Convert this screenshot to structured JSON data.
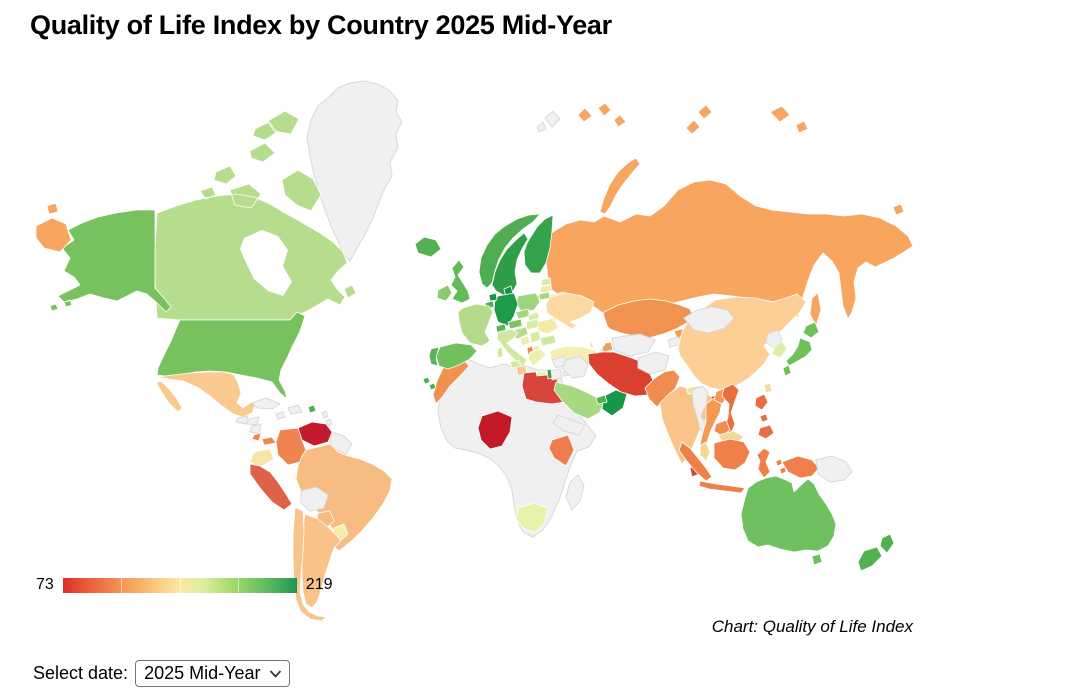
{
  "page": {
    "title": "Quality of Life Index by Country 2025 Mid-Year"
  },
  "legend": {
    "min_label": "73",
    "max_label": "219",
    "gradient_stops": [
      "#dc3027 0%",
      "#e85a38 10%",
      "#f59c58 27%",
      "#fdc97f 40%",
      "#fbe8a2 50%",
      "#dcee9f 60%",
      "#a6d96a 72%",
      "#66bd63 86%",
      "#1a9850 100%"
    ],
    "tick_positions_pct": [
      25,
      50,
      75
    ]
  },
  "attribution": "Chart: Quality of Life Index",
  "controls": {
    "label": "Select date:",
    "selected_option": "2025 Mid-Year",
    "options": [
      "2025 Mid-Year"
    ]
  },
  "chart_data": {
    "type": "heatmap",
    "subtype": "choropleth-world-map",
    "title": "Quality of Life Index by Country 2025 Mid-Year",
    "scale": {
      "min": 73,
      "max": 219,
      "palette": "red-yellow-green"
    },
    "no_data_color": "#f0f0f0",
    "no_data_border": "#d9d9d9",
    "country_border": "#ffffff",
    "note": "Only the scale endpoints 73 and 219 are printed in the image; per-country values are estimated from fill colors.",
    "countries": [
      {
        "id": "greenland",
        "name": "Greenland",
        "no_data": true,
        "color": "#f0f0f0"
      },
      {
        "id": "svalbard",
        "name": "Svalbard",
        "no_data": true,
        "color": "#f0f0f0"
      },
      {
        "id": "canada",
        "name": "Canada",
        "color": "#b6dc8d",
        "value_estimate": 160
      },
      {
        "id": "united-states",
        "name": "United States",
        "color": "#77c25e",
        "value_estimate": 172
      },
      {
        "id": "mexico",
        "name": "Mexico",
        "color": "#f9c98e",
        "value_estimate": 117
      },
      {
        "id": "guatemala",
        "name": "Guatemala",
        "no_data": true,
        "color": "#f0f0f0"
      },
      {
        "id": "honduras",
        "name": "Honduras",
        "no_data": true,
        "color": "#f0f0f0"
      },
      {
        "id": "nicaragua",
        "name": "Nicaragua",
        "no_data": true,
        "color": "#f0f0f0"
      },
      {
        "id": "costa-rica",
        "name": "Costa Rica",
        "color": "#f0854e",
        "value_estimate": 97
      },
      {
        "id": "panama",
        "name": "Panama",
        "color": "#f0854e",
        "value_estimate": 97
      },
      {
        "id": "cuba",
        "name": "Cuba",
        "no_data": true,
        "color": "#f0f0f0"
      },
      {
        "id": "hispaniola",
        "name": "Hispaniola",
        "no_data": true,
        "color": "#f0f0f0"
      },
      {
        "id": "jamaica",
        "name": "Jamaica",
        "no_data": true,
        "color": "#f0f0f0"
      },
      {
        "id": "puerto-rico",
        "name": "Puerto Rico",
        "color": "#4fae52",
        "value_estimate": 175
      },
      {
        "id": "lesser-antilles",
        "name": "Lesser Antilles",
        "no_data": true,
        "color": "#f0f0f0"
      },
      {
        "id": "venezuela",
        "name": "Venezuela",
        "color": "#c31b2d",
        "value_estimate": 76
      },
      {
        "id": "guyanas",
        "name": "Guyana / Suriname",
        "no_data": true,
        "color": "#f0f0f0"
      },
      {
        "id": "colombia",
        "name": "Colombia",
        "color": "#ef8450",
        "value_estimate": 97
      },
      {
        "id": "ecuador",
        "name": "Ecuador",
        "color": "#f6e6a5",
        "value_estimate": 135
      },
      {
        "id": "brazil",
        "name": "Brazil",
        "color": "#f8bc82",
        "value_estimate": 112
      },
      {
        "id": "peru",
        "name": "Peru",
        "color": "#e0614a",
        "value_estimate": 88
      },
      {
        "id": "bolivia",
        "name": "Bolivia",
        "no_data": true,
        "color": "#f0f0f0"
      },
      {
        "id": "paraguay",
        "name": "Paraguay",
        "color": "#f8bc82",
        "value_estimate": 112
      },
      {
        "id": "uruguay",
        "name": "Uruguay",
        "color": "#f5eda9",
        "value_estimate": 138
      },
      {
        "id": "argentina",
        "name": "Argentina",
        "color": "#f9c289",
        "value_estimate": 116
      },
      {
        "id": "chile",
        "name": "Chile",
        "color": "#f9c48c",
        "value_estimate": 118
      },
      {
        "id": "africa-nodata",
        "name": "Africa (various, no data)",
        "no_data": true,
        "color": "#f0f0f0"
      },
      {
        "id": "madagascar",
        "name": "Madagascar",
        "no_data": true,
        "color": "#f0f0f0"
      },
      {
        "id": "morocco",
        "name": "Morocco",
        "color": "#f0914f",
        "value_estimate": 100
      },
      {
        "id": "tunisia",
        "name": "Tunisia",
        "color": "#f7c98e",
        "value_estimate": 118
      },
      {
        "id": "egypt",
        "name": "Egypt",
        "color": "#d8453c",
        "value_estimate": 84
      },
      {
        "id": "nigeria",
        "name": "Nigeria",
        "color": "#c21a28",
        "value_estimate": 74
      },
      {
        "id": "kenya",
        "name": "Kenya",
        "color": "#ed7c4e",
        "value_estimate": 90
      },
      {
        "id": "south-africa",
        "name": "South Africa",
        "color": "#e8f2ab",
        "value_estimate": 146
      },
      {
        "id": "atlantic-islands",
        "name": "Atlantic islands",
        "color": "#4fae52",
        "value_estimate": 170
      },
      {
        "id": "russia",
        "name": "Russia",
        "color": "#f8a55f",
        "value_estimate": 108
      },
      {
        "id": "iceland",
        "name": "Iceland",
        "color": "#55b054",
        "value_estimate": 176
      },
      {
        "id": "norway",
        "name": "Norway",
        "color": "#4fae52",
        "value_estimate": 180
      },
      {
        "id": "sweden",
        "name": "Sweden",
        "color": "#2f9e47",
        "value_estimate": 192
      },
      {
        "id": "finland",
        "name": "Finland",
        "color": "#35a34a",
        "value_estimate": 190
      },
      {
        "id": "denmark",
        "name": "Denmark",
        "color": "#129249",
        "value_estimate": 210
      },
      {
        "id": "estonia",
        "name": "Estonia",
        "color": "#d8eda6",
        "value_estimate": 150
      },
      {
        "id": "latvia",
        "name": "Latvia",
        "color": "#f0e8a8",
        "value_estimate": 140
      },
      {
        "id": "lithuania",
        "name": "Lithuania",
        "color": "#aad580",
        "value_estimate": 155
      },
      {
        "id": "belarus",
        "name": "Belarus",
        "color": "#f3e5a5",
        "value_estimate": 132
      },
      {
        "id": "poland",
        "name": "Poland",
        "color": "#9ed47d",
        "value_estimate": 160
      },
      {
        "id": "germany",
        "name": "Germany",
        "color": "#1d9b49",
        "value_estimate": 200
      },
      {
        "id": "netherlands",
        "name": "Netherlands",
        "color": "#19964a",
        "value_estimate": 205
      },
      {
        "id": "belgium",
        "name": "Belgium",
        "color": "#4fae52",
        "value_estimate": 180
      },
      {
        "id": "united-kingdom",
        "name": "United Kingdom",
        "color": "#63bb57",
        "value_estimate": 168
      },
      {
        "id": "ireland",
        "name": "Ireland",
        "color": "#8bcb6e",
        "value_estimate": 165
      },
      {
        "id": "france",
        "name": "France",
        "color": "#b4da8c",
        "value_estimate": 158
      },
      {
        "id": "switzerland",
        "name": "Switzerland",
        "color": "#58b456",
        "value_estimate": 182
      },
      {
        "id": "austria",
        "name": "Austria",
        "color": "#7cc465",
        "value_estimate": 172
      },
      {
        "id": "czechia",
        "name": "Czechia",
        "color": "#a5d67e",
        "value_estimate": 162
      },
      {
        "id": "slovakia",
        "name": "Slovakia",
        "color": "#d8eda6",
        "value_estimate": 150
      },
      {
        "id": "hungary",
        "name": "Hungary",
        "color": "#d9eda2",
        "value_estimate": 140
      },
      {
        "id": "romania",
        "name": "Romania",
        "color": "#f5e9a8",
        "value_estimate": 138
      },
      {
        "id": "moldova",
        "name": "Moldova",
        "color": "#f5e9a8",
        "value_estimate": 138
      },
      {
        "id": "ukraine",
        "name": "Ukraine",
        "color": "#fbd9a0",
        "value_estimate": 122
      },
      {
        "id": "croatia",
        "name": "Croatia",
        "color": "#b8dc8e",
        "value_estimate": 158
      },
      {
        "id": "bosnia",
        "name": "Bosnia and Herzegovina",
        "color": "#e8f0b0",
        "value_estimate": 142
      },
      {
        "id": "serbia",
        "name": "Serbia",
        "color": "#d9eda2",
        "value_estimate": 140
      },
      {
        "id": "albania",
        "name": "Albania",
        "color": "#ef8450",
        "value_estimate": 95
      },
      {
        "id": "north-macedonia",
        "name": "North Macedonia",
        "color": "#e8f0b0",
        "value_estimate": 142
      },
      {
        "id": "bulgaria",
        "name": "Bulgaria",
        "color": "#cde8a0",
        "value_estimate": 144
      },
      {
        "id": "greece",
        "name": "Greece",
        "color": "#e9f0b0",
        "value_estimate": 142
      },
      {
        "id": "italy",
        "name": "Italy",
        "color": "#cfe9a2",
        "value_estimate": 148
      },
      {
        "id": "spain",
        "name": "Spain",
        "color": "#70c05e",
        "value_estimate": 174
      },
      {
        "id": "portugal",
        "name": "Portugal",
        "color": "#58b454",
        "value_estimate": 182
      },
      {
        "id": "turkey",
        "name": "Turkey",
        "color": "#f6eeb2",
        "value_estimate": 134
      },
      {
        "id": "cyprus",
        "name": "Cyprus",
        "no_data": true,
        "color": "#f0f0f0"
      },
      {
        "id": "georgia",
        "name": "Georgia",
        "color": "#f6d7a0",
        "value_estimate": 125
      },
      {
        "id": "azerbaijan",
        "name": "Azerbaijan",
        "color": "#f0a05c",
        "value_estimate": 107
      },
      {
        "id": "armenia",
        "name": "Armenia",
        "no_data": true,
        "color": "#f0f0f0"
      },
      {
        "id": "syria",
        "name": "Syria",
        "no_data": true,
        "color": "#f0f0f0"
      },
      {
        "id": "iraq",
        "name": "Iraq",
        "no_data": true,
        "color": "#f0f0f0"
      },
      {
        "id": "jordan",
        "name": "Jordan",
        "no_data": true,
        "color": "#f0f0f0"
      },
      {
        "id": "israel",
        "name": "Israel",
        "color": "#35a34a",
        "value_estimate": 178
      },
      {
        "id": "saudi-arabia",
        "name": "Saudi Arabia",
        "color": "#a9d883",
        "value_estimate": 155
      },
      {
        "id": "yemen",
        "name": "Yemen",
        "no_data": true,
        "color": "#f0f0f0"
      },
      {
        "id": "oman",
        "name": "Oman",
        "color": "#189648",
        "value_estimate": 212
      },
      {
        "id": "uae",
        "name": "United Arab Emirates",
        "color": "#4caf50",
        "value_estimate": 185
      },
      {
        "id": "iran",
        "name": "Iran",
        "color": "#d9402f",
        "value_estimate": 86
      },
      {
        "id": "afghanistan",
        "name": "Afghanistan",
        "no_data": true,
        "color": "#f0f0f0"
      },
      {
        "id": "kazakhstan",
        "name": "Kazakhstan",
        "color": "#f19350",
        "value_estimate": 103
      },
      {
        "id": "central-asia",
        "name": "Uzbekistan / Turkmenistan",
        "no_data": true,
        "color": "#f0f0f0"
      },
      {
        "id": "kyrgyzstan",
        "name": "Kyrgyzstan",
        "color": "#f4994f",
        "value_estimate": 102
      },
      {
        "id": "tajikistan",
        "name": "Tajikistan",
        "no_data": true,
        "color": "#f0f0f0"
      },
      {
        "id": "pakistan",
        "name": "Pakistan",
        "color": "#f08c50",
        "value_estimate": 98
      },
      {
        "id": "india",
        "name": "India",
        "color": "#fac389",
        "value_estimate": 118
      },
      {
        "id": "nepal",
        "name": "Nepal",
        "color": "#f5e3a0",
        "value_estimate": 130
      },
      {
        "id": "bangladesh",
        "name": "Bangladesh",
        "color": "#cc2d35",
        "value_estimate": 78
      },
      {
        "id": "sri-lanka",
        "name": "Sri Lanka",
        "color": "#d64040",
        "value_estimate": 82
      },
      {
        "id": "china",
        "name": "China",
        "color": "#fbcf96",
        "value_estimate": 122
      },
      {
        "id": "mongolia",
        "name": "Mongolia",
        "no_data": true,
        "color": "#f0f0f0"
      },
      {
        "id": "north-korea",
        "name": "North Korea",
        "no_data": true,
        "color": "#f0f0f0"
      },
      {
        "id": "south-korea",
        "name": "South Korea",
        "color": "#dcefa8",
        "value_estimate": 145
      },
      {
        "id": "japan",
        "name": "Japan",
        "color": "#6ec059",
        "value_estimate": 172
      },
      {
        "id": "taiwan",
        "name": "Taiwan",
        "color": "#f4dfa2",
        "value_estimate": 136
      },
      {
        "id": "myanmar",
        "name": "Myanmar",
        "no_data": true,
        "color": "#f0f0f0"
      },
      {
        "id": "thailand",
        "name": "Thailand",
        "color": "#f4994f",
        "value_estimate": 102
      },
      {
        "id": "laos",
        "name": "Laos",
        "color": "#f4994f",
        "value_estimate": 102
      },
      {
        "id": "vietnam",
        "name": "Vietnam",
        "color": "#e8703f",
        "value_estimate": 94
      },
      {
        "id": "cambodia",
        "name": "Cambodia",
        "color": "#f08c50",
        "value_estimate": 98
      },
      {
        "id": "malaysia",
        "name": "Malaysia",
        "color": "#f6d895",
        "value_estimate": 128
      },
      {
        "id": "indonesia",
        "name": "Indonesia",
        "color": "#ef8049",
        "value_estimate": 96
      },
      {
        "id": "papua-new-guinea",
        "name": "Papua New Guinea",
        "no_data": true,
        "color": "#f0f0f0"
      },
      {
        "id": "philippines",
        "name": "Philippines",
        "color": "#e96c44",
        "value_estimate": 92
      },
      {
        "id": "australia",
        "name": "Australia",
        "color": "#6fc05e",
        "value_estimate": 172
      },
      {
        "id": "new-zealand",
        "name": "New Zealand",
        "color": "#52b150",
        "value_estimate": 184
      }
    ]
  }
}
